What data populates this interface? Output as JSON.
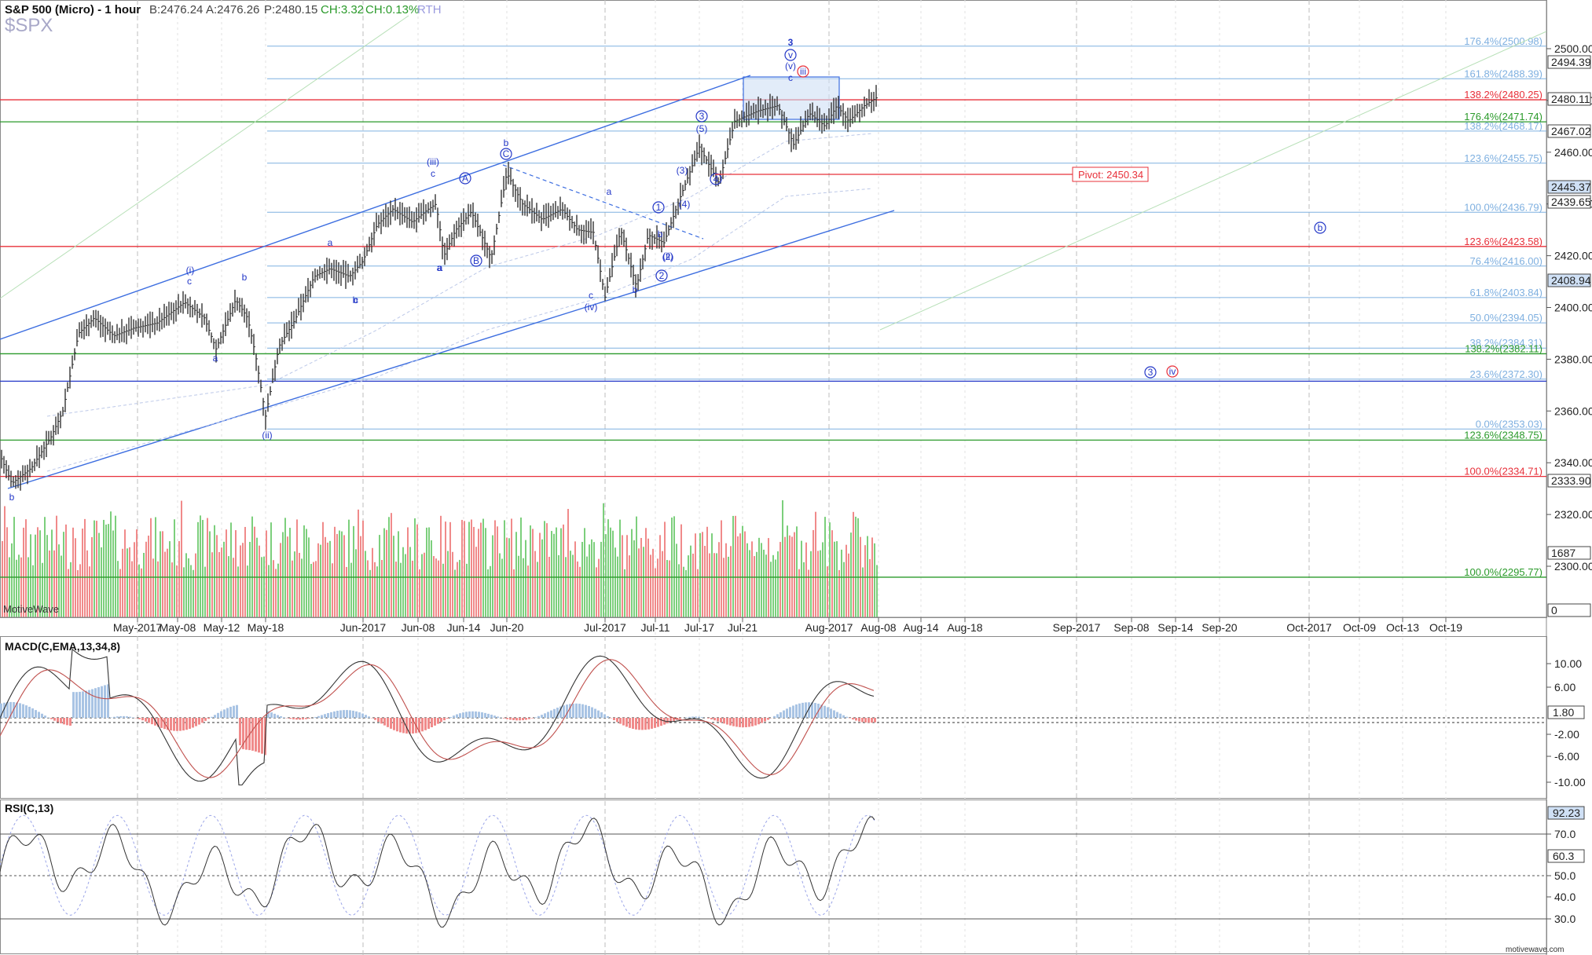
{
  "header": {
    "title": "S&P 500 (Micro) - 1 hour",
    "bid": "B:2476.24",
    "ask": "A:2476.26",
    "price": "P:2480.15",
    "change": "CH:3.32",
    "change_pct": "CH:0.13%",
    "session": "RTH",
    "symbol": "$SPX"
  },
  "watermark": "MotiveWave",
  "footer_brand": "motivewave.com",
  "colors": {
    "wave_blue": "#2438c8",
    "fib_red": "#e8303a",
    "fib_green": "#2a9a2a",
    "fib_light": "#7fb0e0",
    "channel": "#3d6ee0",
    "volume_up": "#7ccf7c",
    "volume_down": "#f08a8a",
    "box_fill": "#cfe0f5"
  },
  "pivot_label": "Pivot: 2450.34",
  "time_labels": [
    "May-2017",
    "May-08",
    "May-12",
    "May-18",
    "Jun-2017",
    "Jun-08",
    "Jun-14",
    "Jun-20",
    "Jul-2017",
    "Jul-11",
    "Jul-17",
    "Jul-21",
    "Aug-2017",
    "Aug-08",
    "Aug-14",
    "Aug-18",
    "Sep-2017",
    "Sep-08",
    "Sep-14",
    "Sep-20",
    "Oct-2017",
    "Oct-09",
    "Oct-13",
    "Oct-19"
  ],
  "price_axis": {
    "ticks": [
      "2500.00",
      "2480.00",
      "2460.00",
      "2440.00",
      "2420.00",
      "2400.00",
      "2380.00",
      "2360.00",
      "2340.00",
      "2320.00",
      "2300.00"
    ],
    "tags": [
      "2494.39",
      "2480.11",
      "2467.02",
      "2445.37",
      "2439.65",
      "2408.94",
      "2333.90",
      "1687",
      "0"
    ]
  },
  "fib_levels": [
    {
      "label": "176.4%(2500.98)",
      "value": 2500.98,
      "color": "light"
    },
    {
      "label": "161.8%(2488.39)",
      "value": 2488.39,
      "color": "light"
    },
    {
      "label": "138.2%(2480.25)",
      "value": 2480.25,
      "color": "red"
    },
    {
      "label": "176.4%(2471.74)",
      "value": 2471.74,
      "color": "green"
    },
    {
      "label": "138.2%(2468.17)",
      "value": 2468.17,
      "color": "light"
    },
    {
      "label": "123.6%(2455.75)",
      "value": 2455.75,
      "color": "light"
    },
    {
      "label": "100.0%(2436.79)",
      "value": 2436.79,
      "color": "light"
    },
    {
      "label": "123.6%(2423.58)",
      "value": 2423.58,
      "color": "red"
    },
    {
      "label": "76.4%(2416.00)",
      "value": 2416.0,
      "color": "light"
    },
    {
      "label": "61.8%(2403.84)",
      "value": 2403.84,
      "color": "light"
    },
    {
      "label": "50.0%(2394.05)",
      "value": 2394.05,
      "color": "light"
    },
    {
      "label": "38.2%(2384.31)",
      "value": 2384.31,
      "color": "light"
    },
    {
      "label": "138.2%(2382.11)",
      "value": 2382.11,
      "color": "green"
    },
    {
      "label": "23.6%(2372.30)",
      "value": 2372.3,
      "color": "light"
    },
    {
      "label": "0.0%(2353.03)",
      "value": 2353.03,
      "color": "light"
    },
    {
      "label": "123.6%(2348.75)",
      "value": 2348.75,
      "color": "green"
    },
    {
      "label": "100.0%(2334.71)",
      "value": 2334.71,
      "color": "red"
    },
    {
      "label": "100.0%(2295.77)",
      "value": 2295.77,
      "color": "green"
    }
  ],
  "wave_labels": [
    "b",
    "(i)",
    "c",
    "a",
    "b",
    "a",
    "c",
    "(ii)",
    "b",
    "a",
    "c",
    "(iii)",
    "A",
    "a",
    "B",
    "b",
    "C",
    "a",
    "b",
    "c",
    "(iv)",
    "1",
    "b",
    "(ii)",
    "2",
    "(2)",
    "(3)",
    "(4)",
    "(5)",
    "3",
    "4",
    "c",
    "(v)",
    "v",
    "3",
    "iii",
    "b",
    "3",
    "iv"
  ],
  "macd": {
    "title": "MACD(C,EMA,13,34,8)",
    "ticks": [
      "10.00",
      "6.00",
      "-2.00",
      "-6.00",
      "-10.00"
    ],
    "tag": "1.80"
  },
  "rsi": {
    "title": "RSI(C,13)",
    "ticks": [
      "70.0",
      "50.0",
      "40.0",
      "30.0"
    ],
    "tags": [
      "92.23",
      "60.3"
    ]
  },
  "chart_data": {
    "type": "line",
    "title": "S&P 500 (Micro) - 1 hour",
    "x": [
      "May-2017",
      "May-08",
      "May-12",
      "May-18",
      "Jun-2017",
      "Jun-08",
      "Jun-14",
      "Jun-20",
      "Jul-2017",
      "Jul-11",
      "Jul-17",
      "Jul-21",
      "Aug-2017",
      "Aug-08"
    ],
    "series": [
      {
        "values": [
          2395,
          2392,
          2400,
          2360,
          2413,
          2433,
          2440,
          2445,
          2425,
          2433,
          2456,
          2478,
          2475,
          2480
        ]
      }
    ],
    "ylim": [
      2286,
      2518
    ],
    "grid": true
  }
}
